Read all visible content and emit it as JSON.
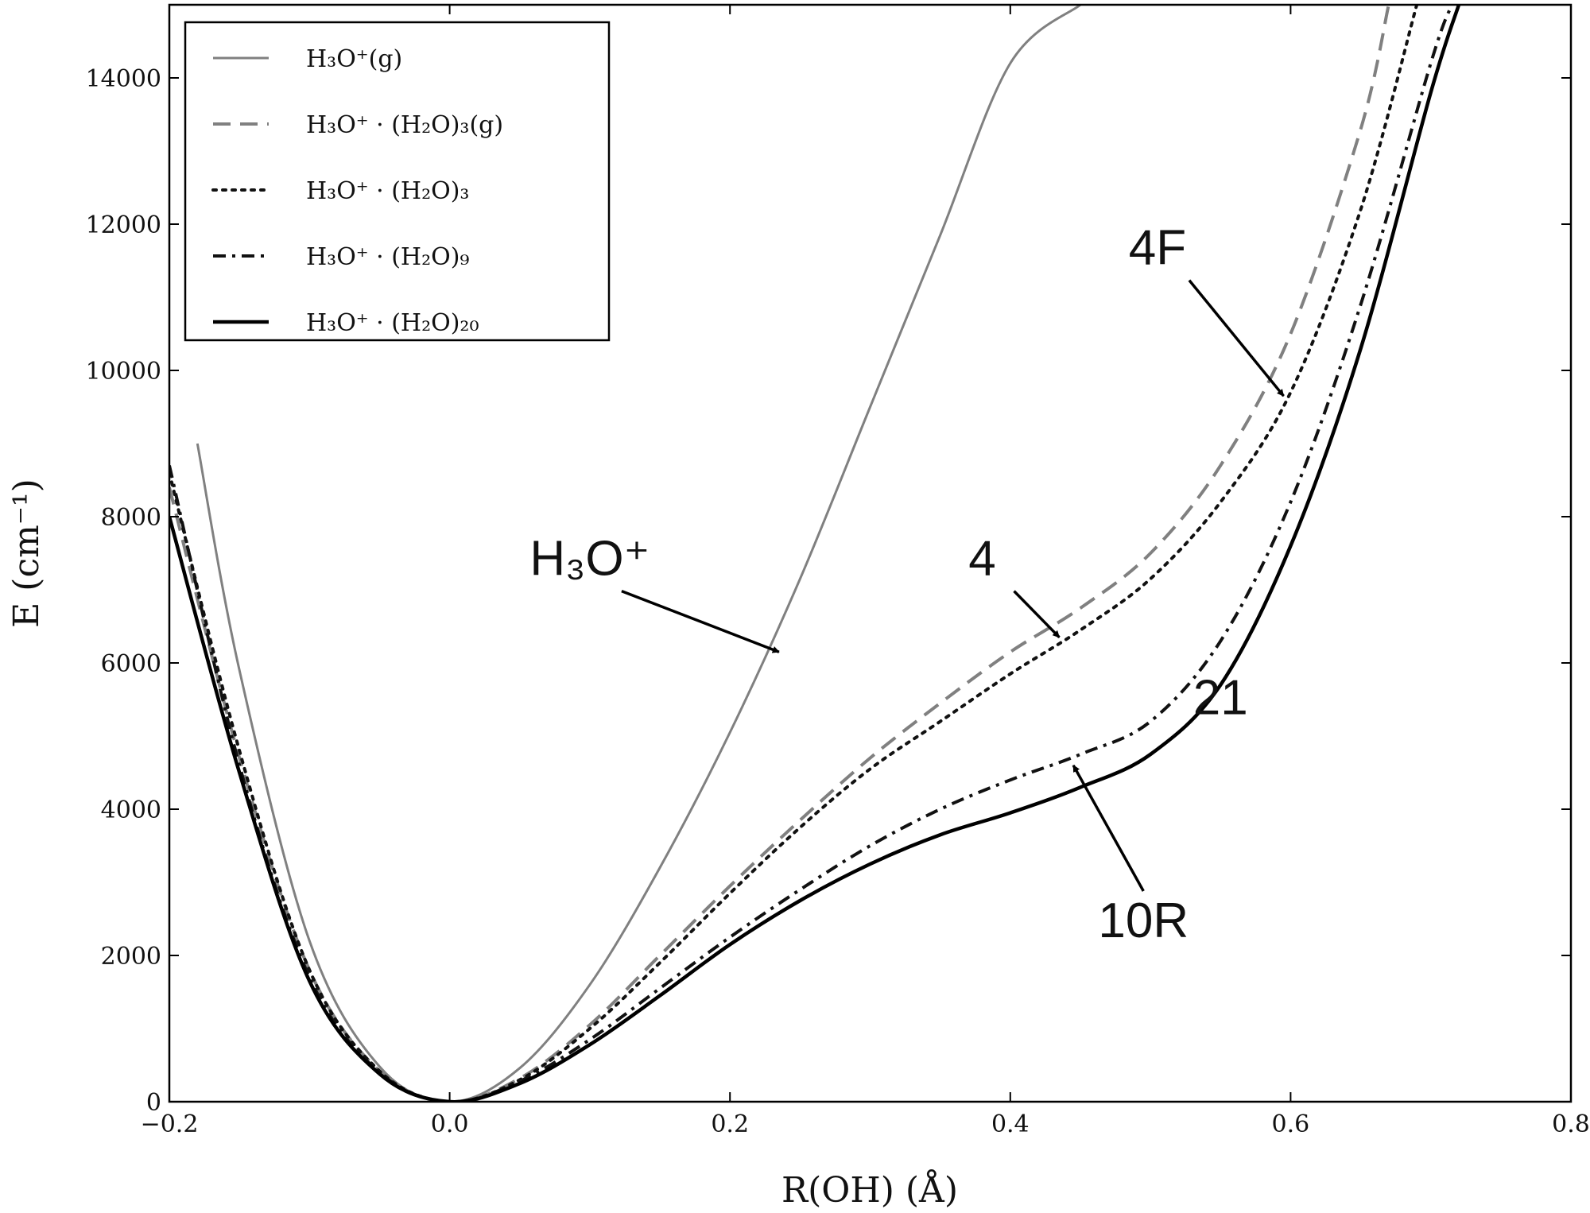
{
  "chart_data": {
    "type": "line",
    "title": "",
    "xlabel": "R(OH) (Å)",
    "ylabel": "E (cm⁻¹)",
    "xlim": [
      -0.2,
      0.8
    ],
    "ylim": [
      0,
      15000
    ],
    "xticks": [
      -0.2,
      0.0,
      0.2,
      0.4,
      0.6,
      0.8
    ],
    "xtick_labels": [
      "−0.2",
      "0.0",
      "0.2",
      "0.4",
      "0.6",
      "0.8"
    ],
    "yticks": [
      0,
      2000,
      4000,
      6000,
      8000,
      10000,
      12000,
      14000
    ],
    "ytick_labels": [
      "0",
      "2000",
      "4000",
      "6000",
      "8000",
      "10000",
      "12000",
      "14000"
    ],
    "legend_position": "top-left",
    "series": [
      {
        "name": "H₃O⁺(g)",
        "style": "solid",
        "color": "#808080",
        "x": [
          -0.18,
          -0.15,
          -0.1,
          -0.05,
          0.0,
          0.05,
          0.1,
          0.15,
          0.2,
          0.25,
          0.3,
          0.35,
          0.4,
          0.45
        ],
        "y": [
          9000,
          5900,
          2200,
          480,
          0,
          460,
          1600,
          3200,
          5050,
          7150,
          9500,
          11850,
          14200,
          15000
        ]
      },
      {
        "name": "H₃O⁺ · (H₂O)₃(g)",
        "style": "dashed",
        "color": "#808080",
        "x": [
          -0.2,
          -0.15,
          -0.1,
          -0.05,
          0.0,
          0.05,
          0.1,
          0.15,
          0.2,
          0.25,
          0.3,
          0.35,
          0.4,
          0.45,
          0.5,
          0.55,
          0.6,
          0.65,
          0.67
        ],
        "y": [
          8400,
          4700,
          1800,
          420,
          0,
          320,
          1050,
          2000,
          2950,
          3850,
          4700,
          5450,
          6150,
          6750,
          7500,
          8700,
          10500,
          13300,
          15000
        ]
      },
      {
        "name": "H₃O⁺ · (H₂O)₃",
        "style": "dotted",
        "color": "#111111",
        "x": [
          -0.2,
          -0.15,
          -0.1,
          -0.05,
          0.0,
          0.05,
          0.1,
          0.15,
          0.2,
          0.25,
          0.3,
          0.35,
          0.4,
          0.45,
          0.5,
          0.55,
          0.6,
          0.65,
          0.69
        ],
        "y": [
          8600,
          4800,
          1800,
          420,
          0,
          300,
          1000,
          1900,
          2850,
          3750,
          4550,
          5200,
          5850,
          6450,
          7150,
          8200,
          9700,
          12200,
          15000
        ]
      },
      {
        "name": "H₃O⁺ · (H₂O)₉",
        "style": "dashdot",
        "color": "#111111",
        "x": [
          -0.2,
          -0.15,
          -0.1,
          -0.05,
          0.0,
          0.05,
          0.1,
          0.15,
          0.2,
          0.25,
          0.3,
          0.35,
          0.4,
          0.45,
          0.5,
          0.55,
          0.6,
          0.65,
          0.7,
          0.715
        ],
        "y": [
          8700,
          4600,
          1700,
          400,
          0,
          280,
          850,
          1550,
          2250,
          2900,
          3500,
          4000,
          4400,
          4750,
          5200,
          6300,
          8200,
          10900,
          14200,
          15000
        ]
      },
      {
        "name": "H₃O⁺ · (H₂O)₂₀",
        "style": "solid",
        "color": "#000000",
        "x": [
          -0.2,
          -0.15,
          -0.1,
          -0.05,
          0.0,
          0.05,
          0.1,
          0.15,
          0.2,
          0.25,
          0.3,
          0.35,
          0.4,
          0.45,
          0.5,
          0.55,
          0.6,
          0.65,
          0.7,
          0.72
        ],
        "y": [
          8000,
          4500,
          1650,
          380,
          0,
          250,
          780,
          1450,
          2150,
          2750,
          3250,
          3650,
          3950,
          4300,
          4750,
          5700,
          7600,
          10300,
          13800,
          15000
        ]
      }
    ],
    "annotations": [
      {
        "text": "H₃O⁺",
        "x": 0.1,
        "y": 7200,
        "arrow_to": [
          0.235,
          6150
        ]
      },
      {
        "text": "4",
        "x": 0.38,
        "y": 7200,
        "arrow_to": [
          0.435,
          6350
        ]
      },
      {
        "text": "4F",
        "x": 0.505,
        "y": 11450,
        "arrow_to": [
          0.595,
          9650
        ]
      },
      {
        "text": "21",
        "x": 0.55,
        "y": 5300,
        "arrow_to": null
      },
      {
        "text": "10R",
        "x": 0.495,
        "y": 2250,
        "arrow_to": [
          0.445,
          4600
        ]
      }
    ]
  }
}
